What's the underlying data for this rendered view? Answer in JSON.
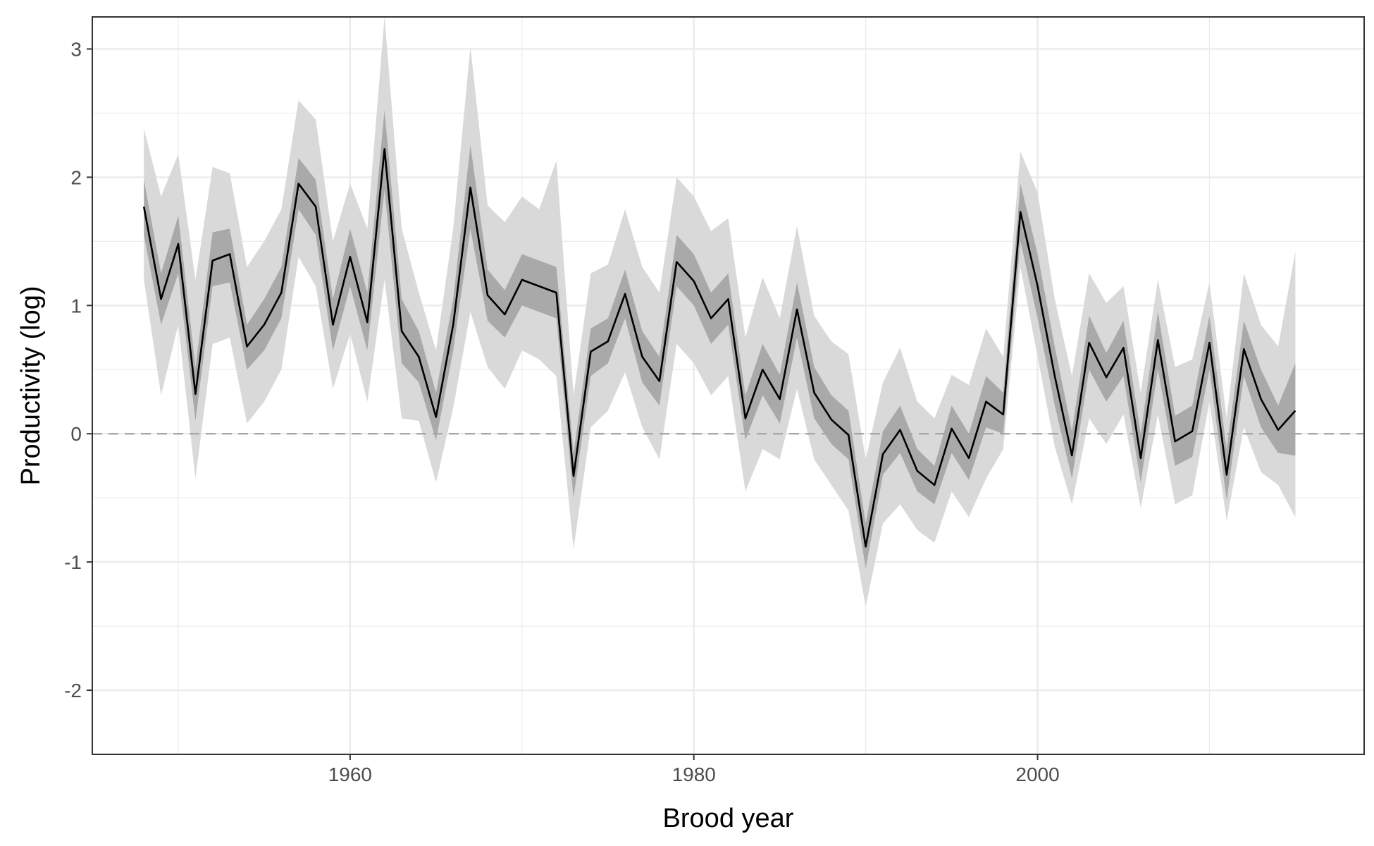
{
  "chart_data": {
    "type": "line",
    "title": "",
    "xlabel": "Brood year",
    "ylabel": "Productivity (log)",
    "xlim": [
      1945,
      2019
    ],
    "ylim": [
      -2.5,
      3.25
    ],
    "x_ticks": [
      1960,
      1980,
      2000
    ],
    "y_ticks": [
      -2,
      -1,
      0,
      1,
      2,
      3
    ],
    "grid": true,
    "reference_line": {
      "y": 0,
      "style": "dashed",
      "color": "#a6a6a6"
    },
    "colors": {
      "line": "#000000",
      "inner_band": "#a9a9a9",
      "outer_band": "#d9d9d9",
      "grid": "#ebebeb",
      "panel_border": "#333333"
    },
    "x": [
      1948,
      1949,
      1950,
      1951,
      1952,
      1953,
      1954,
      1955,
      1956,
      1957,
      1958,
      1959,
      1960,
      1961,
      1962,
      1963,
      1964,
      1965,
      1966,
      1967,
      1968,
      1969,
      1970,
      1971,
      1972,
      1973,
      1974,
      1975,
      1976,
      1977,
      1978,
      1979,
      1980,
      1981,
      1982,
      1983,
      1984,
      1985,
      1986,
      1987,
      1988,
      1989,
      1990,
      1991,
      1992,
      1993,
      1994,
      1995,
      1996,
      1997,
      1998,
      1999,
      2000,
      2001,
      2002,
      2003,
      2004,
      2005,
      2006,
      2007,
      2008,
      2009,
      2010,
      2011,
      2012,
      2013,
      2014,
      2015
    ],
    "series": [
      {
        "values": [
          1.77,
          1.05,
          1.48,
          0.31,
          1.35,
          1.4,
          0.68,
          0.85,
          1.1,
          1.95,
          1.77,
          0.85,
          1.38,
          0.87,
          2.22,
          0.8,
          0.6,
          0.13,
          0.85,
          1.92,
          1.08,
          0.93,
          1.2,
          1.15,
          1.1,
          -0.33,
          0.64,
          0.72,
          1.09,
          0.6,
          0.41,
          1.34,
          1.19,
          0.9,
          1.05,
          0.12,
          0.5,
          0.27,
          0.97,
          0.32,
          0.11,
          -0.01,
          -0.88,
          -0.16,
          0.03,
          -0.29,
          -0.4,
          0.04,
          -0.19,
          0.25,
          0.15,
          1.73,
          1.15,
          0.45,
          -0.17,
          0.71,
          0.44,
          0.67,
          -0.19,
          0.73,
          -0.06,
          0.02,
          0.71,
          -0.32,
          0.66,
          0.27,
          0.03,
          0.18
        ],
        "inner_lower": [
          1.55,
          0.85,
          1.25,
          0.1,
          1.15,
          1.18,
          0.5,
          0.65,
          0.9,
          1.75,
          1.55,
          0.65,
          1.15,
          0.65,
          1.9,
          0.55,
          0.4,
          -0.05,
          0.65,
          1.6,
          0.88,
          0.75,
          1.0,
          0.95,
          0.9,
          -0.5,
          0.45,
          0.55,
          0.9,
          0.4,
          0.22,
          1.15,
          1.0,
          0.7,
          0.85,
          -0.05,
          0.3,
          0.08,
          0.75,
          0.12,
          -0.08,
          -0.2,
          -1.05,
          -0.32,
          -0.15,
          -0.45,
          -0.55,
          -0.15,
          -0.36,
          0.05,
          0.0,
          1.5,
          0.9,
          0.22,
          -0.35,
          0.5,
          0.25,
          0.45,
          -0.38,
          0.5,
          -0.25,
          -0.18,
          0.5,
          -0.52,
          0.45,
          0.05,
          -0.15,
          -0.17
        ],
        "inner_upper": [
          1.98,
          1.25,
          1.7,
          0.52,
          1.57,
          1.6,
          0.85,
          1.05,
          1.3,
          2.15,
          1.98,
          1.05,
          1.6,
          1.1,
          2.52,
          1.05,
          0.8,
          0.32,
          1.05,
          2.25,
          1.28,
          1.12,
          1.4,
          1.35,
          1.3,
          -0.15,
          0.82,
          0.9,
          1.28,
          0.8,
          0.6,
          1.55,
          1.4,
          1.1,
          1.25,
          0.3,
          0.7,
          0.46,
          1.18,
          0.52,
          0.3,
          0.18,
          -0.7,
          0.02,
          0.22,
          -0.12,
          -0.25,
          0.22,
          0.0,
          0.45,
          0.32,
          1.95,
          1.4,
          0.68,
          0.02,
          0.92,
          0.63,
          0.88,
          0.0,
          0.95,
          0.14,
          0.22,
          0.92,
          -0.12,
          0.88,
          0.5,
          0.22,
          0.55
        ],
        "outer_lower": [
          1.2,
          0.3,
          0.85,
          -0.35,
          0.7,
          0.75,
          0.08,
          0.25,
          0.5,
          1.38,
          1.15,
          0.35,
          0.78,
          0.25,
          1.2,
          0.12,
          0.1,
          -0.38,
          0.2,
          0.95,
          0.52,
          0.35,
          0.65,
          0.58,
          0.45,
          -0.9,
          0.05,
          0.18,
          0.48,
          0.05,
          -0.2,
          0.7,
          0.55,
          0.3,
          0.45,
          -0.45,
          -0.12,
          -0.2,
          0.35,
          -0.2,
          -0.4,
          -0.6,
          -1.35,
          -0.7,
          -0.55,
          -0.75,
          -0.85,
          -0.45,
          -0.65,
          -0.35,
          -0.12,
          1.3,
          0.6,
          -0.1,
          -0.55,
          0.12,
          -0.08,
          0.15,
          -0.58,
          0.15,
          -0.55,
          -0.48,
          0.25,
          -0.68,
          0.05,
          -0.3,
          -0.4,
          -0.65
        ],
        "outer_upper": [
          2.38,
          1.85,
          2.18,
          1.2,
          2.08,
          2.03,
          1.3,
          1.5,
          1.75,
          2.6,
          2.45,
          1.5,
          1.95,
          1.6,
          3.25,
          1.6,
          1.1,
          0.65,
          1.6,
          3.02,
          1.78,
          1.65,
          1.85,
          1.75,
          2.13,
          0.3,
          1.25,
          1.32,
          1.75,
          1.3,
          1.1,
          2.0,
          1.85,
          1.58,
          1.68,
          0.75,
          1.22,
          0.9,
          1.62,
          0.92,
          0.72,
          0.62,
          -0.2,
          0.4,
          0.67,
          0.25,
          0.12,
          0.46,
          0.38,
          0.82,
          0.6,
          2.2,
          1.88,
          1.05,
          0.45,
          1.25,
          1.02,
          1.15,
          0.32,
          1.2,
          0.52,
          0.58,
          1.18,
          0.12,
          1.25,
          0.85,
          0.68,
          1.42
        ]
      }
    ]
  }
}
